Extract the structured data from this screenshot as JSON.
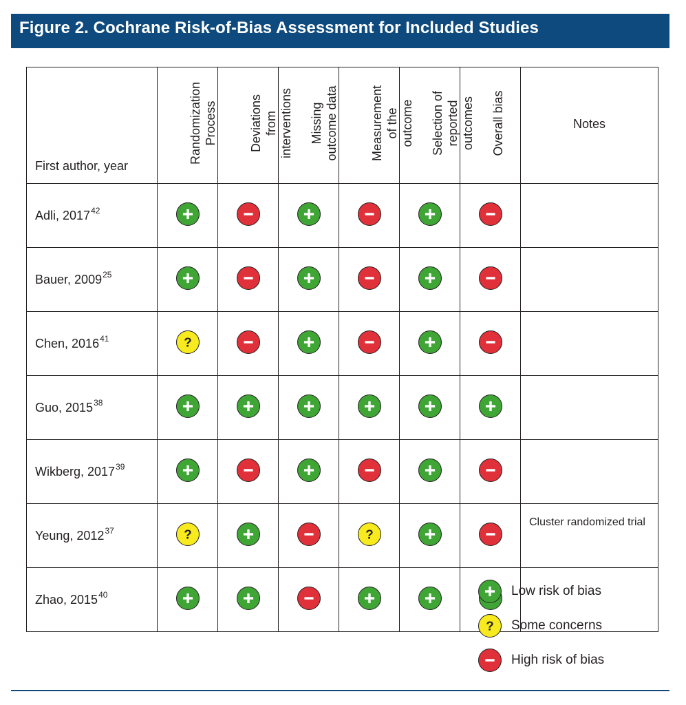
{
  "title": "Figure 2. Cochrane Risk-of-Bias Assessment for Included Studies",
  "columns": {
    "author": "First author, year",
    "randomization": "Randomization\nProcess",
    "deviations": "Deviations\nfrom\ninterventions",
    "missing": "Missing\noutcome data",
    "measurement": "Measurement\nof the\noutcome",
    "selection": "Selection of\nreported\noutcomes",
    "overall": "Overall bias",
    "notes": "Notes"
  },
  "rows": [
    {
      "author": "Adli, 2017",
      "ref": "42",
      "randomization": "low",
      "deviations": "high",
      "missing": "low",
      "measurement": "high",
      "selection": "low",
      "overall": "high",
      "notes": ""
    },
    {
      "author": "Bauer, 2009",
      "ref": "25",
      "randomization": "low",
      "deviations": "high",
      "missing": "low",
      "measurement": "high",
      "selection": "low",
      "overall": "high",
      "notes": ""
    },
    {
      "author": "Chen, 2016",
      "ref": "41",
      "randomization": "some",
      "deviations": "high",
      "missing": "low",
      "measurement": "high",
      "selection": "low",
      "overall": "high",
      "notes": ""
    },
    {
      "author": "Guo, 2015",
      "ref": "38",
      "randomization": "low",
      "deviations": "low",
      "missing": "low",
      "measurement": "low",
      "selection": "low",
      "overall": "low",
      "notes": ""
    },
    {
      "author": "Wikberg, 2017",
      "ref": "39",
      "randomization": "low",
      "deviations": "high",
      "missing": "low",
      "measurement": "high",
      "selection": "low",
      "overall": "high",
      "notes": ""
    },
    {
      "author": "Yeung, 2012",
      "ref": "37",
      "randomization": "some",
      "deviations": "low",
      "missing": "high",
      "measurement": "some",
      "selection": "low",
      "overall": "high",
      "notes": "Cluster randomized trial"
    },
    {
      "author": "Zhao, 2015",
      "ref": "40",
      "randomization": "low",
      "deviations": "low",
      "missing": "high",
      "measurement": "low",
      "selection": "low",
      "overall": "low",
      "notes": ""
    }
  ],
  "legend": [
    {
      "key": "low",
      "label": "Low risk of bias",
      "icon": "plus-icon",
      "color": "#3fa535"
    },
    {
      "key": "some",
      "label": "Some concerns",
      "icon": "question-icon",
      "color": "#f7ea1e"
    },
    {
      "key": "high",
      "label": "High risk of bias",
      "icon": "minus-icon",
      "color": "#e03039"
    }
  ],
  "colors": {
    "title_bar": "#0e4a7d",
    "low": "#3fa535",
    "some": "#f7ea1e",
    "high": "#e03039"
  }
}
